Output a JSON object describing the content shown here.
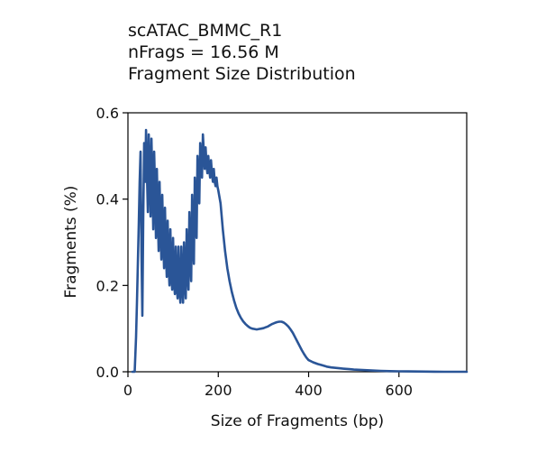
{
  "chart_data": {
    "type": "line",
    "title_lines": [
      "scATAC_BMMC_R1",
      "nFrags = 16.56 M",
      "Fragment Size Distribution"
    ],
    "xlabel": "Size of Fragments (bp)",
    "ylabel": "Fragments (%)",
    "xlim": [
      0,
      750
    ],
    "ylim": [
      0,
      0.6
    ],
    "xticks": [
      0,
      200,
      400,
      600
    ],
    "xtick_labels": [
      "0",
      "200",
      "400",
      "600"
    ],
    "yticks": [
      0.0,
      0.2,
      0.4,
      0.6
    ],
    "ytick_labels": [
      "0.0",
      "0.2",
      "0.4",
      "0.6"
    ],
    "grid": false,
    "legend": "none",
    "line_color": "#2a5597",
    "series": [
      {
        "x": [
          10,
          15,
          18,
          20,
          22,
          24,
          26,
          28,
          30,
          32,
          34,
          36,
          38,
          40,
          42,
          44,
          46,
          48,
          50,
          52,
          54,
          56,
          58,
          60,
          62,
          64,
          66,
          68,
          70,
          72,
          74,
          76,
          78,
          80,
          82,
          84,
          86,
          88,
          90,
          92,
          94,
          96,
          98,
          100,
          102,
          104,
          106,
          108,
          110,
          112,
          114,
          116,
          118,
          120,
          122,
          124,
          126,
          128,
          130,
          132,
          134,
          136,
          138,
          140,
          142,
          144,
          146,
          148,
          150,
          152,
          154,
          156,
          158,
          160,
          162,
          164,
          166,
          168,
          170,
          172,
          174,
          176,
          178,
          180,
          182,
          184,
          186,
          188,
          190,
          192,
          194,
          196,
          198,
          200,
          205,
          210,
          215,
          220,
          225,
          230,
          235,
          240,
          245,
          250,
          255,
          260,
          265,
          270,
          275,
          280,
          285,
          290,
          295,
          300,
          305,
          310,
          315,
          320,
          325,
          330,
          335,
          340,
          345,
          350,
          355,
          360,
          365,
          370,
          375,
          380,
          385,
          390,
          395,
          400,
          410,
          420,
          430,
          440,
          450,
          460,
          470,
          480,
          490,
          500,
          520,
          540,
          560,
          580,
          600,
          620,
          640,
          660,
          680,
          700,
          720,
          750
        ],
        "y": [
          0.0,
          0.0,
          0.08,
          0.16,
          0.25,
          0.34,
          0.44,
          0.51,
          0.28,
          0.13,
          0.36,
          0.53,
          0.44,
          0.56,
          0.46,
          0.37,
          0.55,
          0.46,
          0.36,
          0.54,
          0.44,
          0.33,
          0.51,
          0.42,
          0.31,
          0.47,
          0.37,
          0.28,
          0.44,
          0.34,
          0.26,
          0.41,
          0.31,
          0.24,
          0.38,
          0.28,
          0.22,
          0.35,
          0.25,
          0.2,
          0.33,
          0.23,
          0.19,
          0.31,
          0.21,
          0.18,
          0.29,
          0.2,
          0.17,
          0.29,
          0.19,
          0.16,
          0.29,
          0.2,
          0.16,
          0.3,
          0.21,
          0.17,
          0.33,
          0.23,
          0.19,
          0.37,
          0.26,
          0.21,
          0.41,
          0.3,
          0.25,
          0.45,
          0.36,
          0.31,
          0.5,
          0.43,
          0.39,
          0.53,
          0.48,
          0.45,
          0.55,
          0.51,
          0.47,
          0.52,
          0.48,
          0.46,
          0.5,
          0.47,
          0.45,
          0.49,
          0.46,
          0.44,
          0.47,
          0.44,
          0.43,
          0.45,
          0.43,
          0.42,
          0.39,
          0.33,
          0.28,
          0.24,
          0.21,
          0.185,
          0.165,
          0.148,
          0.135,
          0.125,
          0.117,
          0.111,
          0.106,
          0.102,
          0.1,
          0.099,
          0.098,
          0.099,
          0.1,
          0.101,
          0.103,
          0.105,
          0.108,
          0.111,
          0.113,
          0.115,
          0.116,
          0.116,
          0.114,
          0.11,
          0.105,
          0.098,
          0.09,
          0.08,
          0.07,
          0.06,
          0.05,
          0.041,
          0.033,
          0.027,
          0.022,
          0.018,
          0.015,
          0.012,
          0.01,
          0.009,
          0.008,
          0.007,
          0.006,
          0.005,
          0.004,
          0.003,
          0.002,
          0.0015,
          0.001,
          0.0008,
          0.0006,
          0.0004,
          0.0002,
          0.0001,
          0.0,
          0.0
        ]
      }
    ]
  }
}
